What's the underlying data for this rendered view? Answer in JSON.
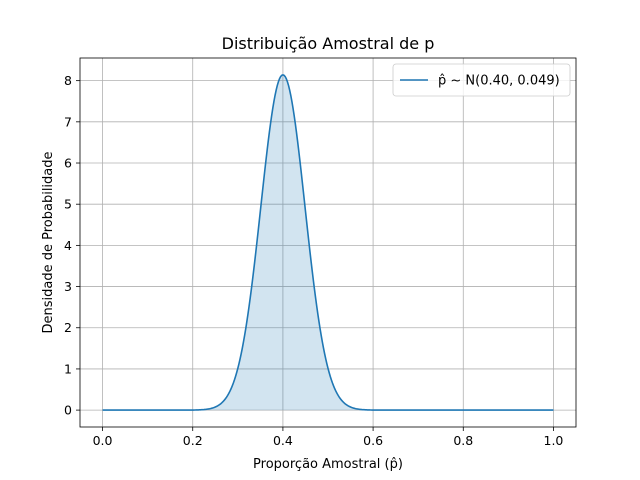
{
  "chart_data": {
    "type": "line",
    "title": "Distribuição Amostral de p",
    "xlabel": "Proporção Amostral (p̂)",
    "ylabel": "Densidade de Probabilidade",
    "xlim": [
      -0.05,
      1.05
    ],
    "ylim": [
      -0.41,
      8.55
    ],
    "x_ticks": [
      0.0,
      0.2,
      0.4,
      0.6,
      0.8,
      1.0
    ],
    "x_tick_labels": [
      "0.0",
      "0.2",
      "0.4",
      "0.6",
      "0.8",
      "1.0"
    ],
    "y_ticks": [
      0,
      1,
      2,
      3,
      4,
      5,
      6,
      7,
      8
    ],
    "y_tick_labels": [
      "0",
      "1",
      "2",
      "3",
      "4",
      "5",
      "6",
      "7",
      "8"
    ],
    "grid": true,
    "legend_position": "upper right",
    "series": [
      {
        "name": "p̂ ~ N(0.40, 0.049)",
        "color": "#1f77b4",
        "fill_color": "#1f77b4",
        "distribution": "normal",
        "mean": 0.4,
        "sd": 0.049,
        "x_range": [
          0.0,
          1.0
        ],
        "filled": true
      }
    ]
  }
}
